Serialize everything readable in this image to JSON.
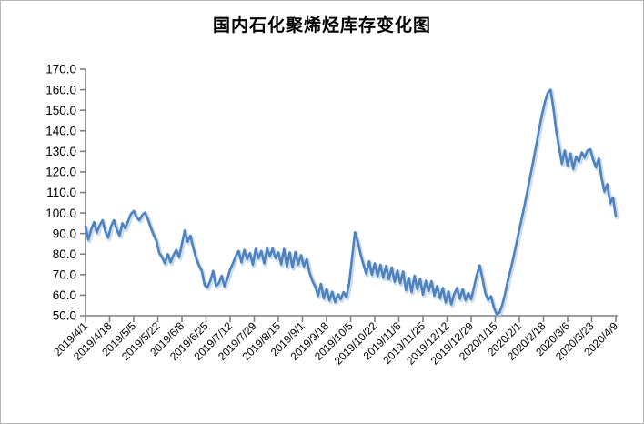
{
  "window": {
    "title": "国内石化聚烯烃库存变化图"
  },
  "chart_data": {
    "type": "line",
    "title": "国内石化聚烯烃库存变化图",
    "series_name": "国内石化聚烯烃库存",
    "legend": "none",
    "grid": false,
    "ylim": [
      50,
      170
    ],
    "ytick_step": 10,
    "ytick_labels": [
      "170.0",
      "160.0",
      "150.0",
      "140.0",
      "130.0",
      "120.0",
      "110.0",
      "100.0",
      "90.0",
      "80.0",
      "70.0",
      "60.0",
      "50.0"
    ],
    "x_tick_labels": [
      "2019/4/1",
      "2019/4/18",
      "2019/5/5",
      "2019/5/22",
      "2019/6/8",
      "2019/6/25",
      "2019/7/12",
      "2019/7/29",
      "2019/8/15",
      "2019/9/1",
      "2019/9/18",
      "2019/10/5",
      "2019/10/22",
      "2019/11/8",
      "2019/11/25",
      "2019/12/12",
      "2019/12/29",
      "2020/1/15",
      "2020/2/1",
      "2020/2/18",
      "2020/3/6",
      "2020/3/23",
      "2020/4/9"
    ],
    "x_start": "2019/4/1",
    "x_end": "2020/4/9",
    "values": [
      93.5,
      87,
      92,
      95.5,
      90.5,
      94,
      96.5,
      91,
      88,
      93.5,
      96.5,
      92,
      89,
      95,
      92.5,
      96,
      99.5,
      101,
      98,
      96.5,
      99,
      100.2,
      97,
      93,
      89.5,
      86.5,
      80.5,
      78.5,
      75.5,
      80,
      76,
      79.5,
      82,
      78.5,
      85,
      91.5,
      86,
      89,
      83,
      78,
      74.5,
      71.8,
      65,
      63.8,
      67,
      71.8,
      64.5,
      65.8,
      69.5,
      64.3,
      68,
      72.5,
      75.5,
      79,
      81.5,
      76,
      82,
      77.5,
      80.5,
      74.8,
      82.5,
      78,
      81.5,
      75.5,
      82.8,
      79,
      82.7,
      78,
      80.8,
      75,
      82.5,
      74,
      80.8,
      73.5,
      81,
      75,
      79.5,
      74,
      77.5,
      71,
      67,
      64.3,
      59.7,
      65.5,
      58.5,
      63,
      57.4,
      61.7,
      56.7,
      60.5,
      58,
      61.5,
      59,
      66,
      78,
      90.6,
      86,
      80,
      75,
      70.5,
      76.5,
      70,
      75.5,
      69.3,
      74.8,
      68.5,
      74.3,
      67.8,
      73.5,
      66.5,
      72,
      65.8,
      71.5,
      62.4,
      68.5,
      61.5,
      69.5,
      63,
      68,
      60.3,
      67,
      62,
      66.8,
      59.8,
      64.5,
      58.5,
      63.5,
      56.5,
      61.8,
      55.5,
      60.5,
      63.5,
      58.2,
      62.9,
      57.5,
      61,
      58,
      64,
      70,
      74.5,
      68,
      61,
      57.7,
      59.5,
      54,
      50.8,
      51.5,
      55.5,
      61,
      67.5,
      73,
      79,
      85.5,
      92,
      98.5,
      105,
      112,
      119,
      126,
      133.4,
      141,
      148,
      154,
      158.5,
      160,
      151,
      140,
      131.8,
      124,
      130.4,
      123,
      129,
      121.4,
      127.5,
      125,
      129.5,
      127,
      130.4,
      131,
      126,
      122.2,
      126.6,
      117,
      110.4,
      114,
      104.7,
      107.6,
      98.5
    ],
    "line_color": "#4F81BD",
    "line_halo_color": "#9DC3E6",
    "axis_color": "#808080",
    "text_color": "#000000",
    "background": "#FFFFFF"
  }
}
